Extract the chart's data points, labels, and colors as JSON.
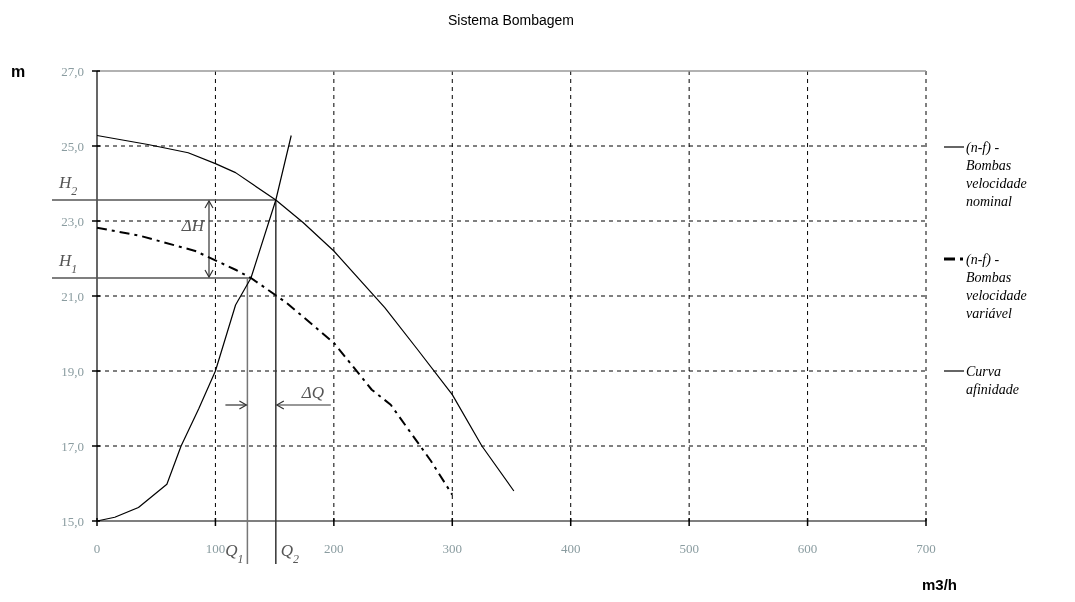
{
  "chart_data": {
    "type": "line",
    "title": "Sistema Bombagem",
    "xlabel": "m3/h",
    "ylabel": "m",
    "xlim": [
      0,
      700
    ],
    "xticks": [
      0,
      100,
      200,
      300,
      400,
      500,
      600,
      700
    ],
    "ylim": [
      15,
      27
    ],
    "yticks": [
      {
        "value": 15,
        "label": "15,0"
      },
      {
        "value": 17,
        "label": "17,0"
      },
      {
        "value": 19,
        "label": "19,0"
      },
      {
        "value": 21,
        "label": "21,0"
      },
      {
        "value": 23,
        "label": "23,0"
      },
      {
        "value": 25,
        "label": "25,0"
      },
      {
        "value": 27,
        "label": "27,0"
      }
    ],
    "grid": true,
    "legend": "right",
    "series": [
      {
        "name": "(n-f) - Bombas velocidade nominal",
        "color": "#000000",
        "line_style": "solid",
        "x": [
          0,
          43,
          77,
          100,
          117,
          151,
          174,
          200,
          243,
          270,
          300,
          325,
          352
        ],
        "values": [
          25.28,
          25.04,
          24.82,
          24.53,
          24.29,
          23.56,
          22.96,
          22.2,
          20.69,
          19.6,
          18.37,
          17.0,
          15.8
        ]
      },
      {
        "name": "(n-f) - Bombas velocidade variável",
        "color": "#000000",
        "line_style": "dashed",
        "x": [
          0,
          37,
          83,
          117,
          130,
          160,
          200,
          232,
          248,
          282,
          300
        ],
        "values": [
          22.82,
          22.6,
          22.2,
          21.7,
          21.48,
          20.82,
          19.75,
          18.5,
          18.1,
          16.6,
          15.7
        ]
      },
      {
        "name": "Curva afinidade",
        "color": "#000000",
        "line_style": "solid",
        "x": [
          0,
          15,
          35,
          59,
          71,
          86,
          100,
          117,
          130,
          151,
          164
        ],
        "values": [
          15.0,
          15.1,
          15.36,
          15.98,
          17.0,
          18.0,
          19.0,
          20.76,
          21.48,
          23.56,
          25.28
        ]
      }
    ],
    "annotations": [
      {
        "text": "H$_{2}$",
        "x": 151,
        "y": 23.56
      },
      {
        "text": "H$_{1}$",
        "x": 130,
        "y": 21.48
      },
      {
        "text": "Q$_{1}$",
        "x": 127,
        "y": 21.48
      },
      {
        "text": "Q$_{2}$",
        "x": 151,
        "y": 23.56
      },
      "ΔH",
      "ΔQ"
    ]
  }
}
